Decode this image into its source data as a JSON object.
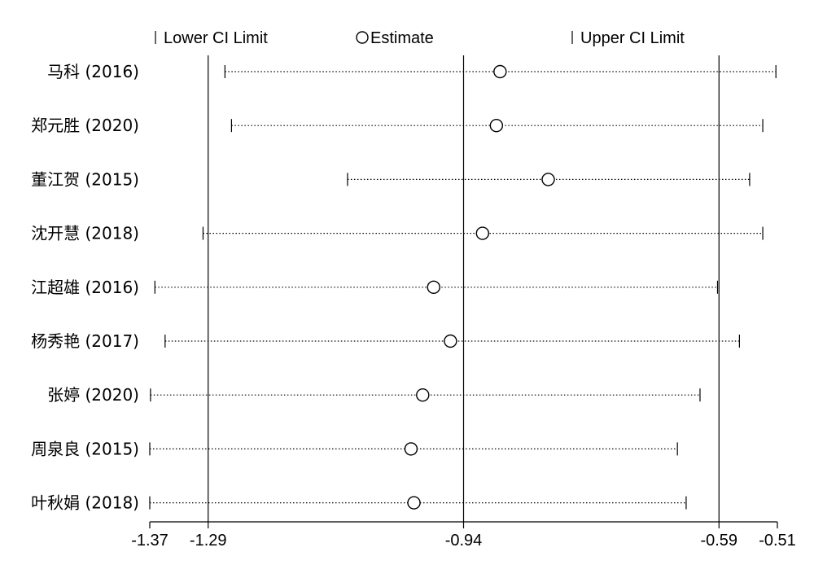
{
  "legend": {
    "lower": "Lower CI Limit",
    "estimate": "Estimate",
    "upper": "Upper CI Limit"
  },
  "chart_data": {
    "type": "forest",
    "x_ticks": [
      -1.37,
      -1.29,
      -0.94,
      -0.59,
      -0.51
    ],
    "x_tick_labels": [
      "-1.37",
      "-1.29",
      "-0.94",
      "-0.59",
      "-0.51"
    ],
    "xlim": [
      -1.37,
      -0.51
    ],
    "reference_lines": [
      -1.29,
      -0.94,
      -0.59
    ],
    "rows": [
      {
        "label": "马科 (2016)",
        "lower": -1.267,
        "estimate": -0.89,
        "upper": -0.512
      },
      {
        "label": "郑元胜 (2020)",
        "lower": -1.258,
        "estimate": -0.895,
        "upper": -0.53
      },
      {
        "label": "董江贺 (2015)",
        "lower": -1.099,
        "estimate": -0.824,
        "upper": -0.548
      },
      {
        "label": "沈开慧 (2018)",
        "lower": -1.297,
        "estimate": -0.914,
        "upper": -0.53
      },
      {
        "label": "江超雄 (2016)",
        "lower": -1.363,
        "estimate": -0.981,
        "upper": -0.592
      },
      {
        "label": "杨秀艳 (2017)",
        "lower": -1.349,
        "estimate": -0.958,
        "upper": -0.562
      },
      {
        "label": "张婷 (2020)",
        "lower": -1.369,
        "estimate": -0.996,
        "upper": -0.616
      },
      {
        "label": "周泉良 (2015)",
        "lower": -1.37,
        "estimate": -1.012,
        "upper": -0.647
      },
      {
        "label": "叶秋娟 (2018)",
        "lower": -1.37,
        "estimate": -1.008,
        "upper": -0.635
      }
    ]
  }
}
